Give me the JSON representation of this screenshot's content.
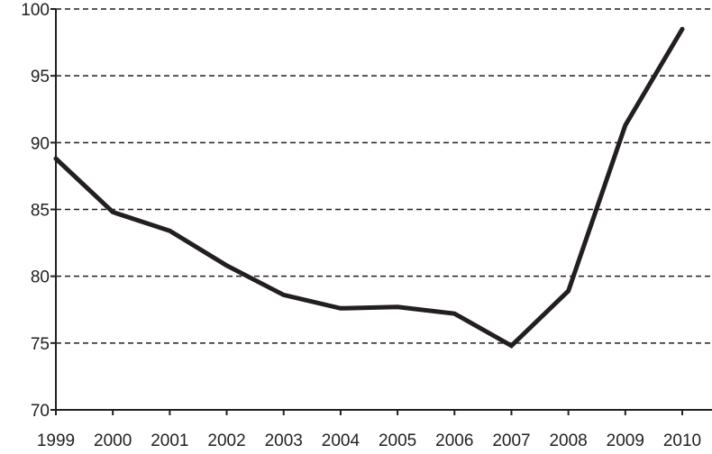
{
  "chart_data": {
    "type": "line",
    "title": "",
    "xlabel": "",
    "ylabel": "",
    "categories": [
      "1999",
      "2000",
      "2001",
      "2002",
      "2003",
      "2004",
      "2005",
      "2006",
      "2007",
      "2008",
      "2009",
      "2010"
    ],
    "series": [
      {
        "values": [
          88.8,
          84.8,
          83.4,
          80.8,
          78.6,
          77.6,
          77.7,
          77.2,
          74.8,
          78.9,
          91.3,
          98.5
        ]
      }
    ],
    "ylim": [
      70,
      100
    ],
    "yticks": [
      "70",
      "75",
      "80",
      "85",
      "90",
      "95",
      "100"
    ],
    "grid": "horizontal dashed",
    "legend": "none",
    "colors": {
      "line": "#231f20",
      "grid": "#231f20"
    }
  }
}
